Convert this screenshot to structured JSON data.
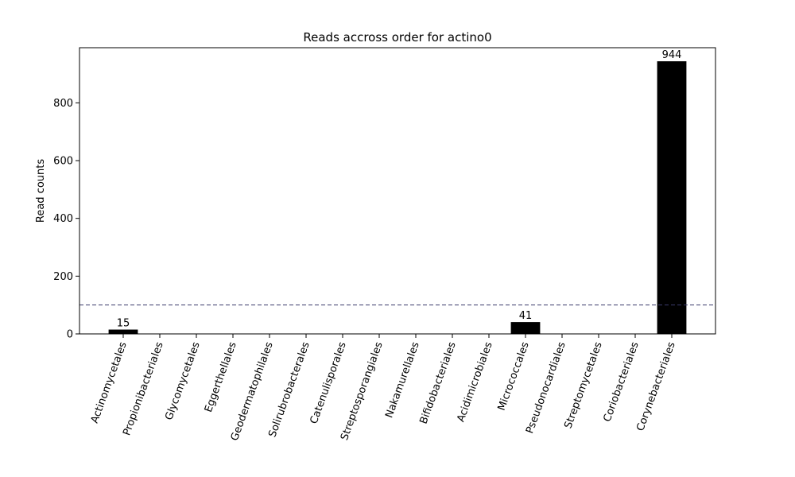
{
  "chart_data": {
    "type": "bar",
    "title": "Reads accross order for actino0",
    "xlabel": "",
    "ylabel": "Read counts",
    "categories": [
      "Actinomycetales",
      "Propionibacteriales",
      "Glycomycetales",
      "Eggerthellales",
      "Geodermatophilales",
      "Solirubrobacterales",
      "Catenulisporales",
      "Streptosporangiales",
      "Nakamurellales",
      "Bifidobacteriales",
      "Acidimicrobiales",
      "Micrococcales",
      "Pseudonocardiales",
      "Streptomycetales",
      "Coriobacteriales",
      "Corynebacteriales"
    ],
    "values": [
      15,
      0,
      0,
      0,
      0,
      0,
      0,
      0,
      0,
      0,
      0,
      41,
      0,
      0,
      0,
      944
    ],
    "data_labels": [
      "15",
      "",
      "",
      "",
      "",
      "",
      "",
      "",
      "",
      "",
      "",
      "41",
      "",
      "",
      "",
      "944"
    ],
    "ylim": [
      0,
      991
    ],
    "yticks": [
      0,
      200,
      400,
      600,
      800
    ],
    "threshold_line": 100,
    "grid": false,
    "bar_color": "#000000",
    "threshold_color": "#3b3b6b"
  }
}
